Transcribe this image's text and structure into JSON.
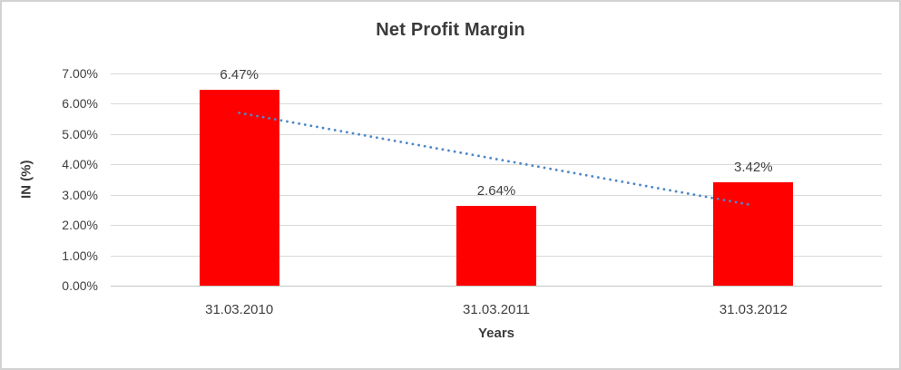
{
  "chart_data": {
    "type": "bar",
    "title": "Net Profit Margin",
    "xlabel": "Years",
    "ylabel": "IN (%)",
    "categories": [
      "31.03.2010",
      "31.03.2011",
      "31.03.2012"
    ],
    "values": [
      6.47,
      2.64,
      3.42
    ],
    "data_labels": [
      "6.47%",
      "2.64%",
      "3.42%"
    ],
    "ylim": [
      0,
      7
    ],
    "ytick_interval": 1,
    "ytick_labels": [
      "0.00%",
      "1.00%",
      "2.00%",
      "3.00%",
      "4.00%",
      "5.00%",
      "6.00%",
      "7.00%"
    ],
    "grid": "horizontal",
    "legend": "none",
    "bar_color": "#ff0000",
    "text_color": "#404040",
    "gridline_color": "#d9d9d9",
    "trendline": {
      "type": "linear",
      "style": "dotted",
      "color": "#4e87c6",
      "start_value": 5.7,
      "end_value": 2.65
    }
  }
}
